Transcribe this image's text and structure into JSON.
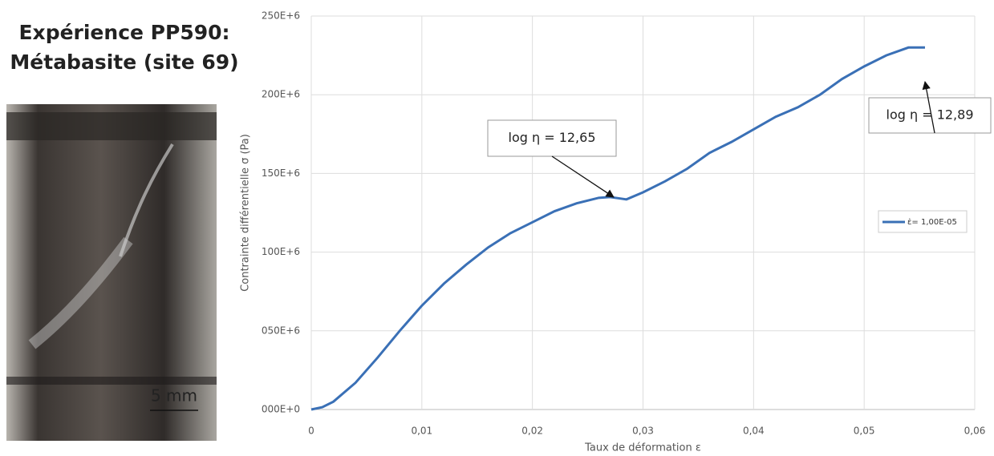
{
  "chart_data": {
    "type": "line",
    "title": "Expérience PP590:",
    "subtitle": "Métabasite (site 69)",
    "photo_label": "5 mm",
    "x_label": "Taux de déformation ε",
    "y_label": "Contrainte différentielle σ (Pa)",
    "x": [
      0,
      0.001,
      0.002,
      0.004,
      0.006,
      0.008,
      0.01,
      0.012,
      0.014,
      0.016,
      0.018,
      0.02,
      0.022,
      0.024,
      0.026,
      0.027,
      0.028,
      0.0285,
      0.03,
      0.032,
      0.034,
      0.036,
      0.038,
      0.04,
      0.042,
      0.044,
      0.046,
      0.048,
      0.05,
      0.052,
      0.054,
      0.0555
    ],
    "series": [
      {
        "name": "ε̇= 1,00E-05",
        "color": "#3a70b6",
        "values": [
          0,
          1500000,
          5000000,
          17000000,
          33000000,
          50000000,
          66000000,
          80000000,
          92000000,
          103000000,
          112000000,
          119000000,
          126000000,
          131000000,
          134500000,
          135000000,
          134000000,
          133500000,
          138000000,
          145000000,
          153000000,
          163000000,
          170000000,
          178000000,
          186000000,
          192000000,
          200000000,
          210000000,
          218000000,
          225000000,
          230000000,
          230000000
        ]
      }
    ],
    "xlim": [
      0,
      0.06
    ],
    "ylim": [
      0,
      250000000
    ],
    "xticks": [
      0,
      {
        "value": 0.01,
        "label": "0,01"
      },
      {
        "value": 0.02,
        "label": "0,02"
      },
      {
        "value": 0.03,
        "label": "0,03"
      },
      {
        "value": 0.04,
        "label": "0,04"
      },
      {
        "value": 0.05,
        "label": "0,05"
      },
      {
        "value": 0.06,
        "label": "0,06"
      }
    ],
    "yticks": [
      {
        "value": 0,
        "label": "000E+0"
      },
      {
        "value": 50000000,
        "label": "050E+6"
      },
      {
        "value": 100000000,
        "label": "100E+6"
      },
      {
        "value": 150000000,
        "label": "150E+6"
      },
      {
        "value": 200000000,
        "label": "200E+6"
      },
      {
        "value": 250000000,
        "label": "250E+6"
      }
    ],
    "grid": true,
    "legend": "right",
    "annotations": [
      "log η = 12,65",
      "log η = 12,89"
    ]
  }
}
